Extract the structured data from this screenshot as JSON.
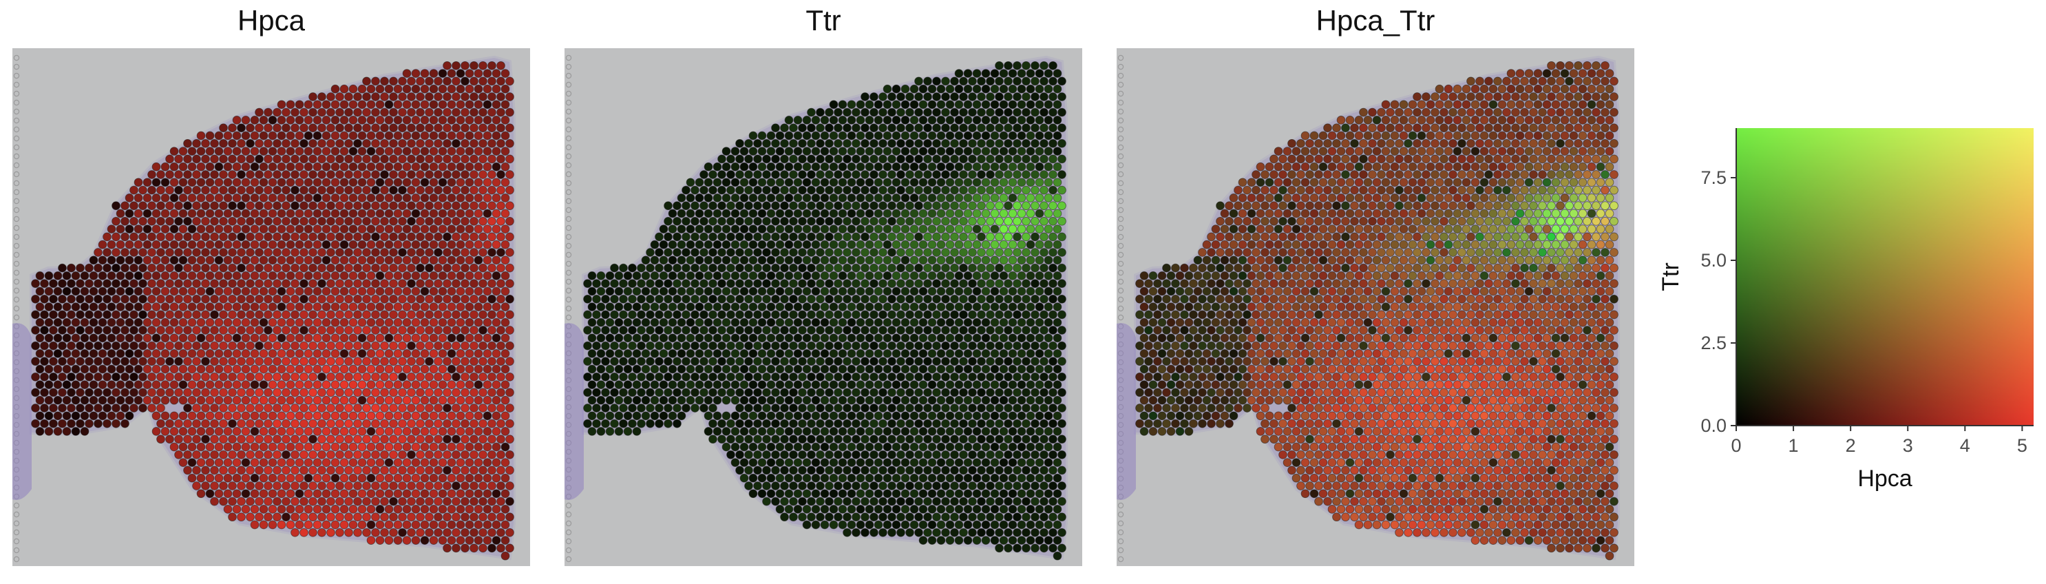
{
  "colors": {
    "background": "#bfc0c1",
    "stain": "#8f7fbf",
    "red_max": "#e8372a",
    "green_max": "#74ee43",
    "yellow_max": "#fefe5a"
  },
  "panels": [
    {
      "title": "Hpca",
      "mode": "red"
    },
    {
      "title": "Ttr",
      "mode": "green"
    },
    {
      "title": "Hpca_Ttr",
      "mode": "blend"
    }
  ],
  "chart_data": {
    "type": "heatmap",
    "x_title": "Hpca",
    "y_title": "Ttr",
    "xlim": [
      0,
      5.2
    ],
    "ylim": [
      0,
      9
    ],
    "x_ticks": [
      0,
      1,
      2,
      3,
      4,
      5
    ],
    "x_tick_labels": [
      "0",
      "1",
      "2",
      "3",
      "4",
      "5"
    ],
    "y_ticks": [
      0,
      2.5,
      5,
      7.5
    ],
    "y_tick_labels": [
      "0.0",
      "2.5",
      "5.0",
      "7.5"
    ],
    "corner_colors": {
      "low_low": "#000000",
      "high_x_low_y": "#e8372a",
      "low_x_high_y": "#74ee43",
      "high_high": "#fefe5a"
    }
  }
}
